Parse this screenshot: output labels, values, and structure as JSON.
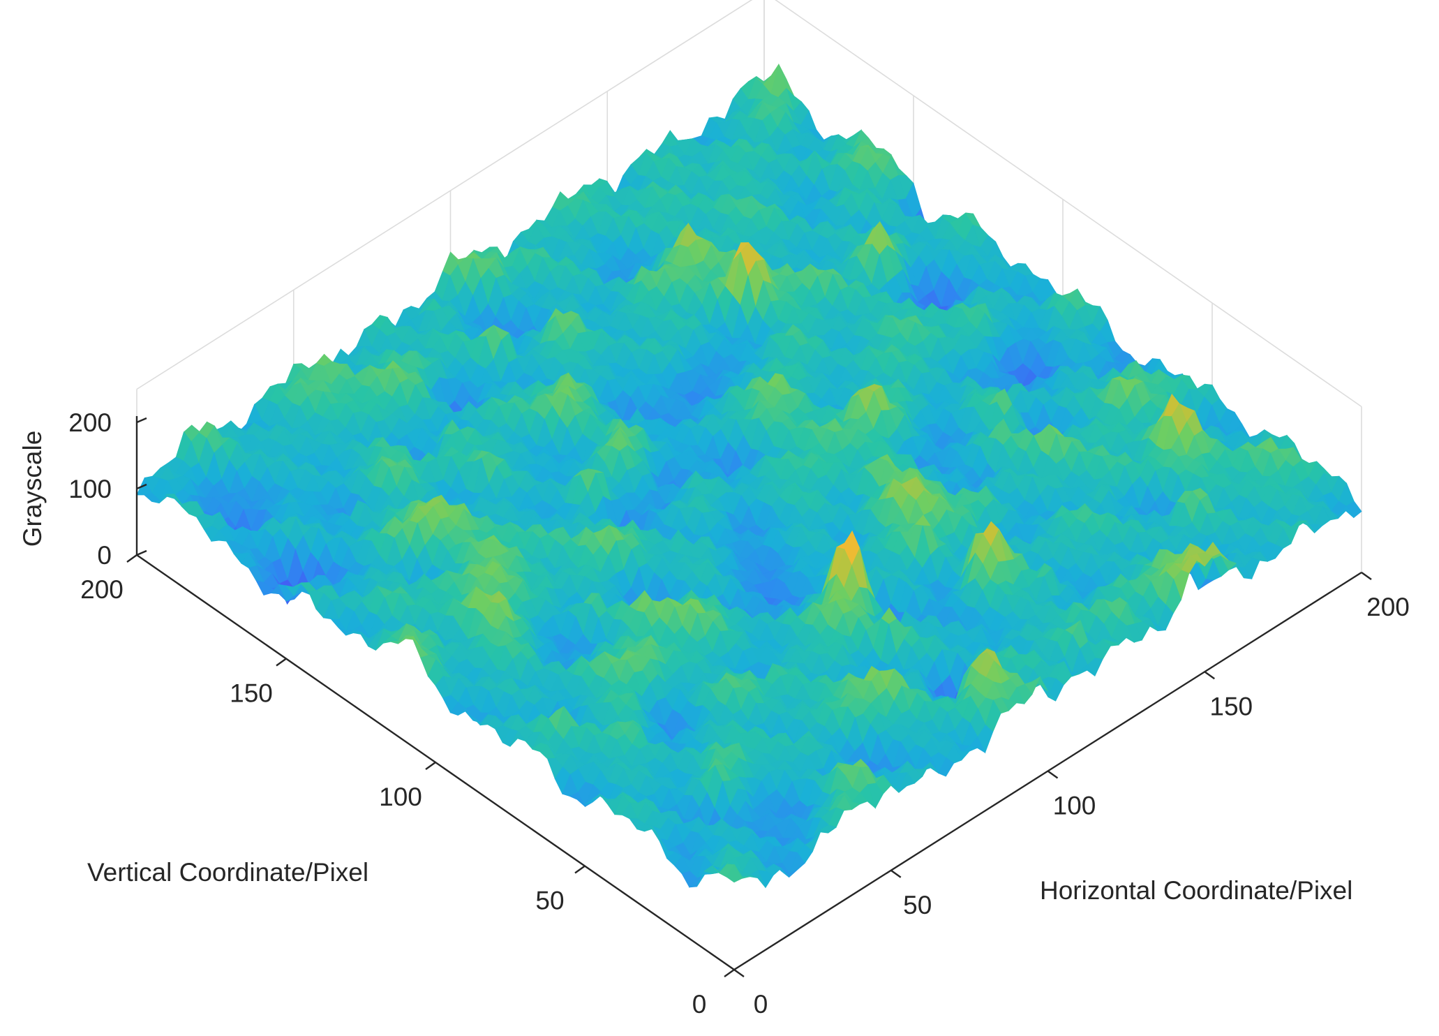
{
  "chart_data": {
    "type": "surface",
    "colormap": "parula",
    "colormap_stops": [
      "#3e26a8",
      "#4559f5",
      "#2d8bf0",
      "#1ab0d8",
      "#28c4a6",
      "#6ece62",
      "#c4c23a",
      "#fcb830",
      "#f9fb15"
    ],
    "xlabel": "Horizontal Coordinate/Pixel",
    "ylabel": "Vertical Coordinate/Pixel",
    "zlabel": "Grayscale",
    "x_ticks": [
      "0",
      "50",
      "100",
      "150",
      "200"
    ],
    "y_ticks": [
      "0",
      "50",
      "100",
      "150",
      "200"
    ],
    "z_ticks": [
      "0",
      "100",
      "200"
    ],
    "xlim": [
      0,
      200
    ],
    "ylim": [
      0,
      200
    ],
    "zlim": [
      0,
      250
    ],
    "grid": true,
    "grid_size": [
      200,
      200
    ],
    "z_baseline": 110,
    "features": [
      {
        "name": "bright peak",
        "x": 90,
        "y": 55,
        "z": 235
      },
      {
        "name": "bright peak",
        "x": 145,
        "y": 148,
        "z": 225
      },
      {
        "name": "bright ridge",
        "x": 118,
        "y": 40,
        "z": 200
      },
      {
        "name": "bright peak",
        "x": 176,
        "y": 135,
        "z": 195
      },
      {
        "name": "dark trough",
        "x": 55,
        "y": 160,
        "z": 25
      },
      {
        "name": "dark trough",
        "x": 75,
        "y": 115,
        "z": 45
      },
      {
        "name": "dark trough",
        "x": 198,
        "y": 145,
        "z": 30
      },
      {
        "name": "dark trough",
        "x": 160,
        "y": 10,
        "z": 30
      },
      {
        "name": "dark trough",
        "x": 90,
        "y": 20,
        "z": 40
      }
    ]
  }
}
